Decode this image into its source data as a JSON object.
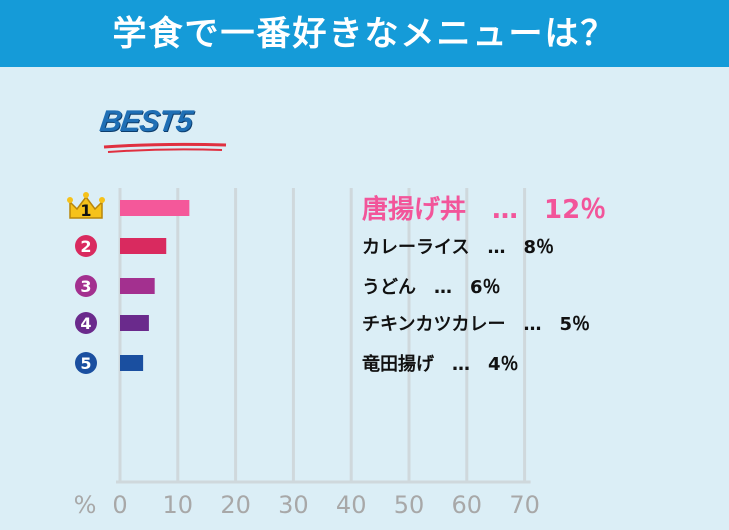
{
  "title": "学食で一番好きなメニューは？",
  "badge": "BEST5",
  "colors": {
    "title_bg": "#159bd8",
    "background": "#dbeef6",
    "rank1_text": "#f2559a",
    "crown": "#f6c21a",
    "grid": "#cfd8dc",
    "axis_text": "#a8a8a8"
  },
  "chart_data": {
    "type": "bar",
    "orientation": "horizontal",
    "title": "学食で一番好きなメニューは？",
    "unit_label": "%",
    "xlim": [
      0,
      70
    ],
    "ticks": [
      0,
      10,
      20,
      30,
      40,
      50,
      60,
      70
    ],
    "categories": [
      "唐揚げ丼",
      "カレーライス",
      "うどん",
      "チキンカツカレー",
      "竜田揚げ"
    ],
    "values": [
      12,
      8,
      6,
      5,
      4
    ],
    "ranks": [
      "1",
      "2",
      "3",
      "4",
      "5"
    ],
    "labels": [
      "唐揚げ丼　…　12％",
      "カレーライス　…　8％",
      "うどん　…　6％",
      "チキンカツカレー　…　5％",
      "竜田揚げ　…　4％"
    ],
    "bar_colors": [
      "#f4589a",
      "#d92a5f",
      "#a3308f",
      "#6a2a8c",
      "#1a4fa0"
    ],
    "rank_colors": [
      "#f6c21a",
      "#d92a5f",
      "#a3308f",
      "#6a2a8c",
      "#1a4fa0"
    ],
    "grid": true
  }
}
